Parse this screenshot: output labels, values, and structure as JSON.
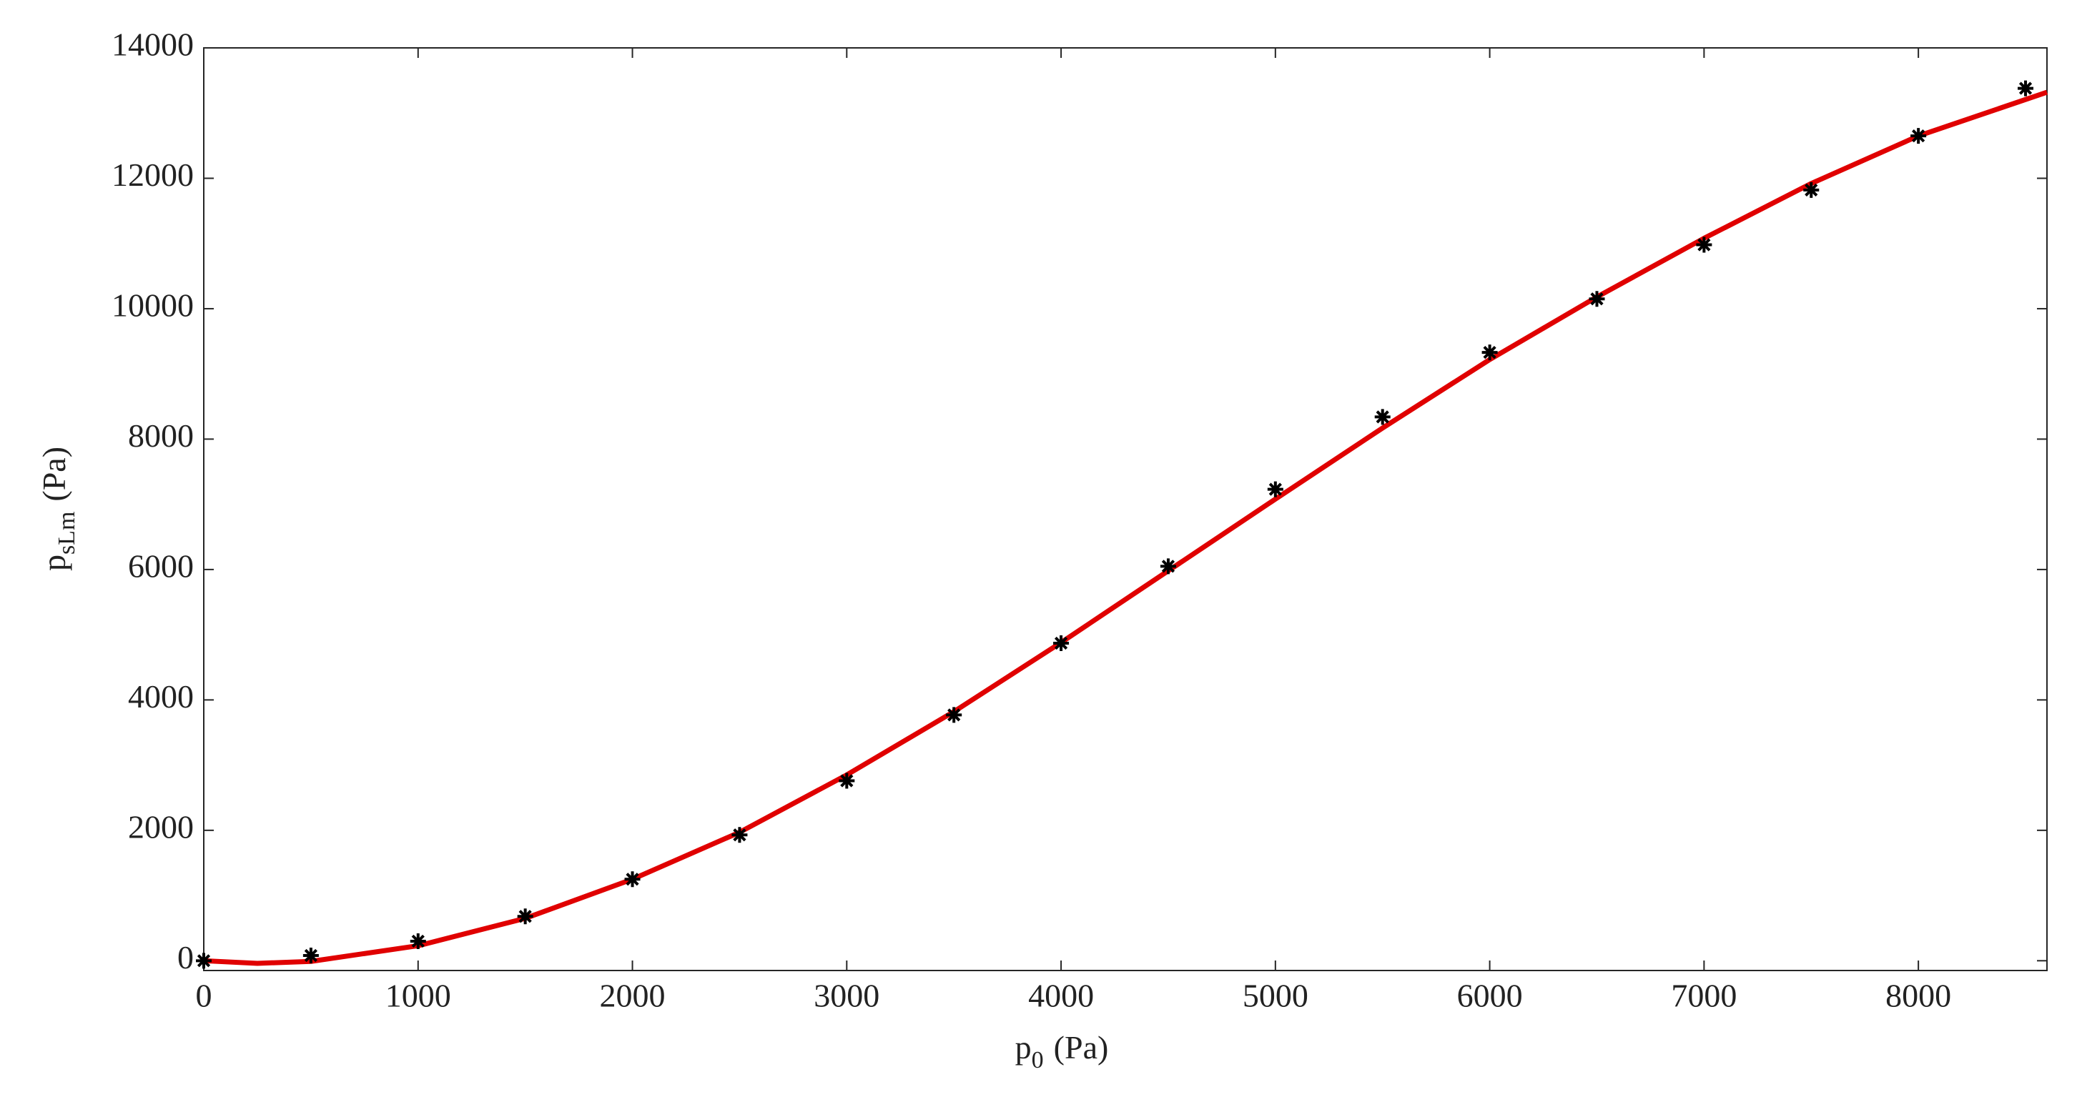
{
  "chart_data": {
    "type": "scatter",
    "xlabel": {
      "base": "p",
      "subscript": "0",
      "unit": "(Pa)"
    },
    "ylabel": {
      "base": "p",
      "subscript": "sLm",
      "unit": "(Pa)"
    },
    "xlim": [
      0,
      8600
    ],
    "ylim": [
      -150,
      14000
    ],
    "xticks": [
      0,
      1000,
      2000,
      3000,
      4000,
      5000,
      6000,
      7000,
      8000
    ],
    "yticks": [
      0,
      2000,
      4000,
      6000,
      8000,
      10000,
      12000,
      14000
    ],
    "grid": false,
    "series": [
      {
        "type": "line",
        "color": "#e00000",
        "x": [
          0,
          250,
          500,
          1000,
          1500,
          2000,
          2500,
          3000,
          3500,
          4000,
          4500,
          5000,
          5500,
          6000,
          6500,
          7000,
          7500,
          8000,
          8600
        ],
        "values": [
          0,
          -40,
          -10,
          230,
          650,
          1250,
          1970,
          2850,
          3820,
          4880,
          5980,
          7080,
          8170,
          9220,
          10180,
          11080,
          11920,
          12650,
          13320
        ]
      },
      {
        "type": "scatter",
        "color": "#000000",
        "x": [
          0,
          500,
          1000,
          1500,
          2000,
          2500,
          3000,
          3500,
          4000,
          4500,
          5000,
          5500,
          6000,
          6500,
          7000,
          7500,
          8000,
          8500
        ],
        "values": [
          0,
          80,
          300,
          680,
          1250,
          1930,
          2760,
          3770,
          4870,
          6050,
          7230,
          8340,
          9330,
          10150,
          10980,
          11820,
          12650,
          13380
        ]
      }
    ]
  }
}
